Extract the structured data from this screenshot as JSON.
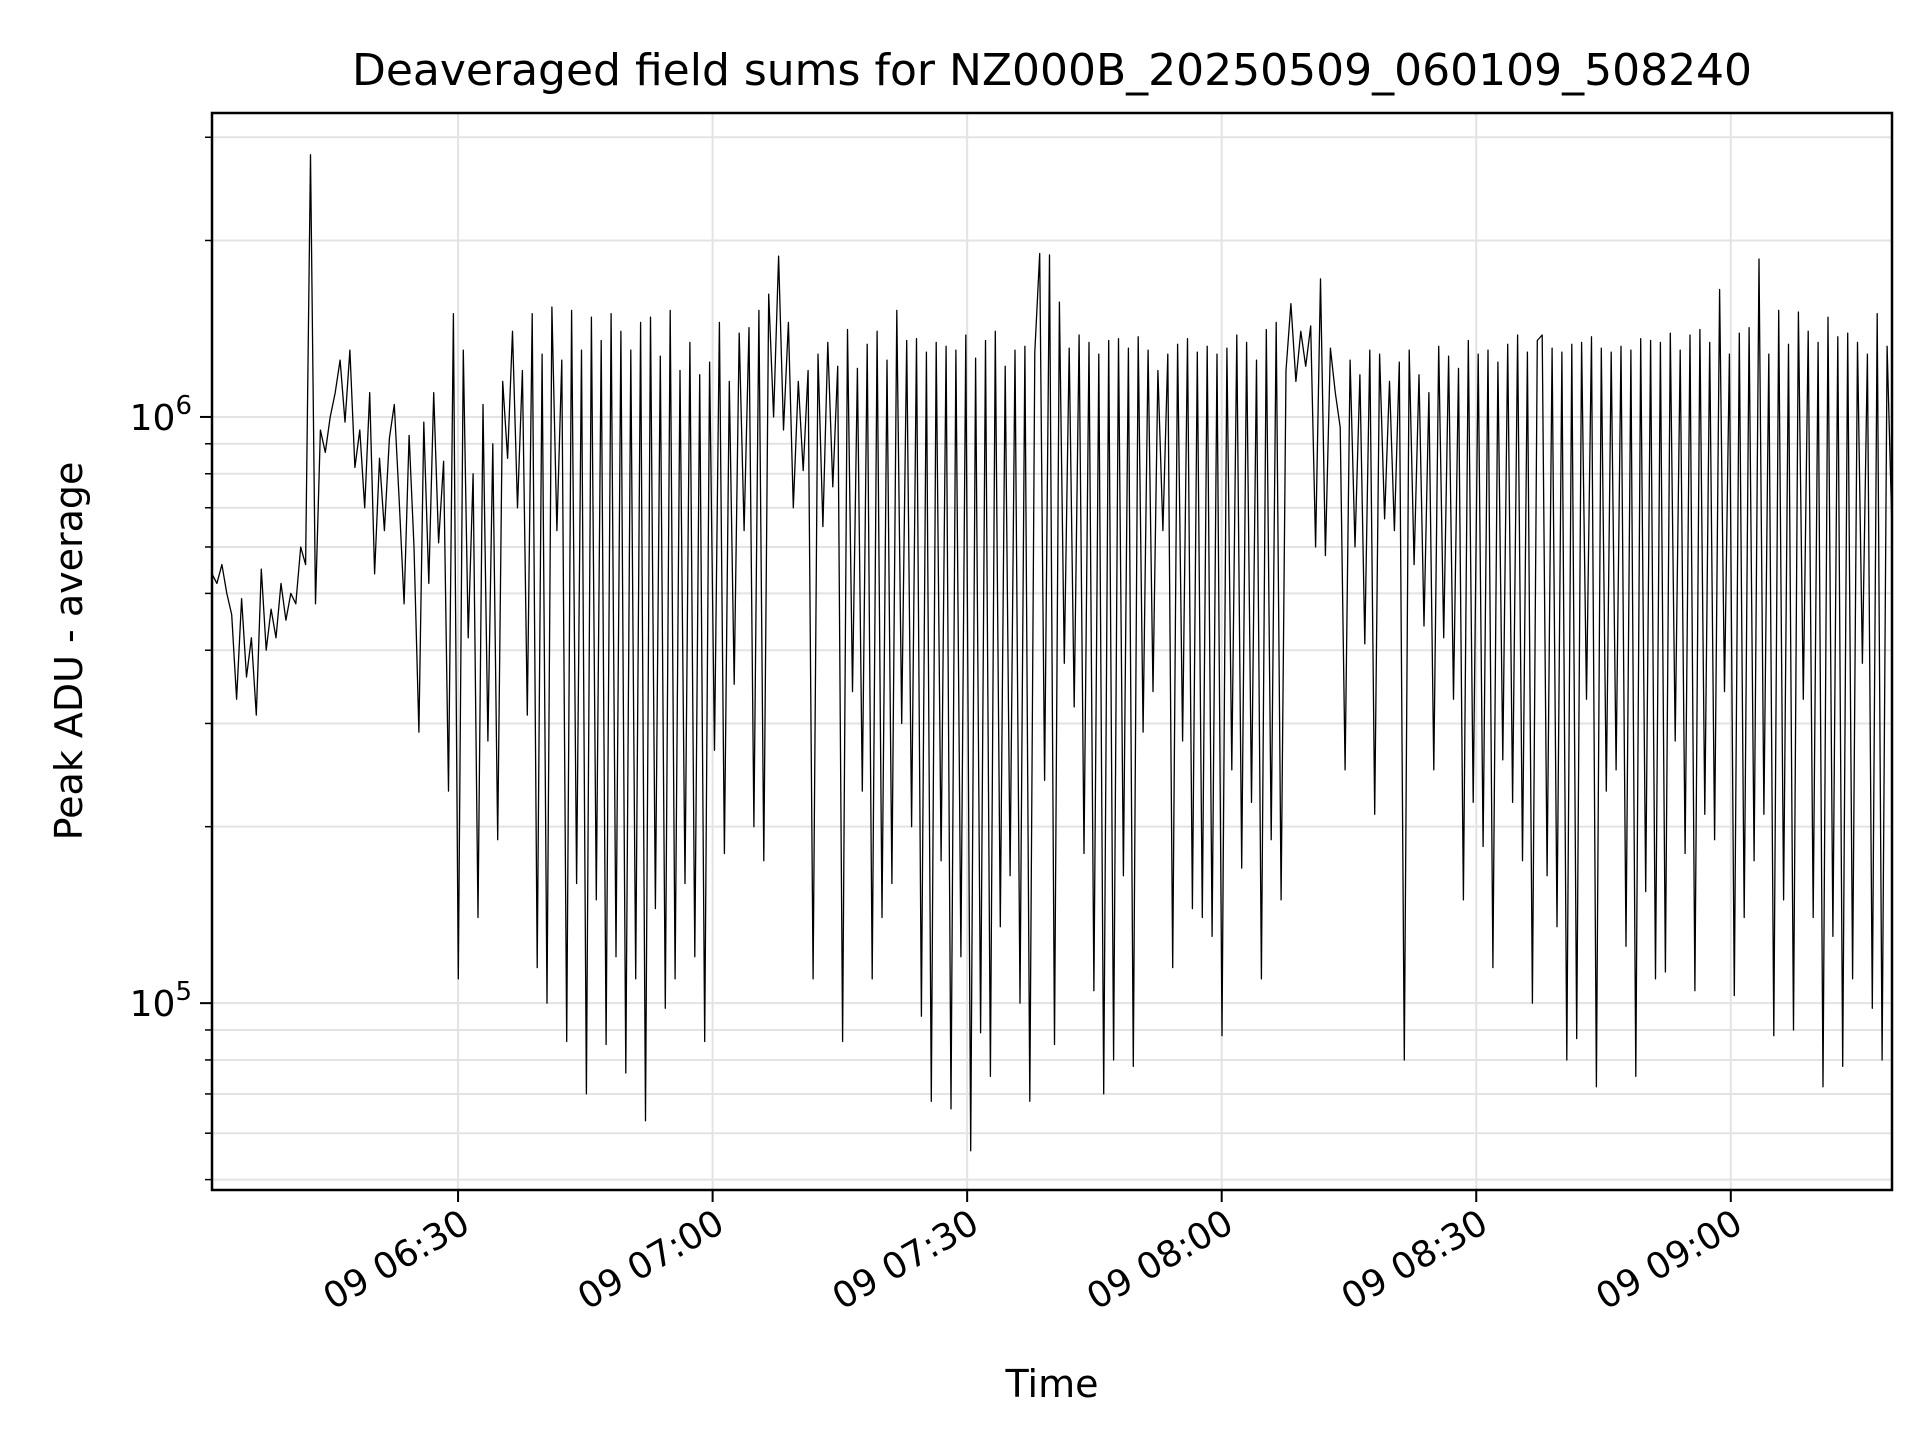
{
  "chart_data": {
    "type": "line",
    "title": "Deaveraged field sums for NZ000B_20250509_060109_508240",
    "xlabel": "Time",
    "ylabel": "Peak ADU - average",
    "yscale": "log",
    "xlim": [
      "2025-05-09 06:01",
      "2025-05-09 09:19"
    ],
    "ylim": [
      48000,
      3300000
    ],
    "grid": true,
    "line_color": "#000000",
    "x_ticks": [
      {
        "time": "06:30",
        "label": "09 06:30"
      },
      {
        "time": "07:00",
        "label": "09 07:00"
      },
      {
        "time": "07:30",
        "label": "09 07:30"
      },
      {
        "time": "08:00",
        "label": "09 08:00"
      },
      {
        "time": "08:30",
        "label": "09 08:30"
      },
      {
        "time": "09:00",
        "label": "09 09:00"
      }
    ],
    "y_ticks": [
      {
        "value": 100000,
        "base": "10",
        "exp": "5"
      },
      {
        "value": 1000000,
        "base": "10",
        "exp": "6"
      }
    ],
    "series": [
      {
        "x_start": "2025-05-09 06:01",
        "x_end": "2025-05-09 09:19",
        "values": [
          540000,
          520000,
          560000,
          500000,
          460000,
          330000,
          490000,
          360000,
          420000,
          310000,
          550000,
          400000,
          470000,
          420000,
          520000,
          450000,
          500000,
          480000,
          600000,
          560000,
          2800000,
          480000,
          950000,
          870000,
          1000000,
          1100000,
          1250000,
          980000,
          1300000,
          820000,
          950000,
          700000,
          1100000,
          540000,
          850000,
          640000,
          920000,
          1050000,
          720000,
          480000,
          930000,
          600000,
          290000,
          980000,
          520000,
          1100000,
          610000,
          840000,
          230000,
          1500000,
          110000,
          1300000,
          420000,
          800000,
          140000,
          1050000,
          280000,
          900000,
          190000,
          1150000,
          850000,
          1400000,
          700000,
          1200000,
          310000,
          1500000,
          115000,
          1280000,
          100000,
          1540000,
          640000,
          1250000,
          86000,
          1520000,
          160000,
          1300000,
          70000,
          1480000,
          150000,
          1350000,
          85000,
          1500000,
          120000,
          1400000,
          76000,
          1300000,
          110000,
          1450000,
          63000,
          1480000,
          145000,
          1270000,
          98000,
          1520000,
          110000,
          1200000,
          160000,
          1340000,
          120000,
          1180000,
          86000,
          1240000,
          270000,
          1450000,
          180000,
          1150000,
          350000,
          1390000,
          640000,
          1420000,
          200000,
          1520000,
          175000,
          1620000,
          1000000,
          1880000,
          950000,
          1450000,
          700000,
          1150000,
          810000,
          1200000,
          110000,
          1280000,
          650000,
          1340000,
          760000,
          1220000,
          86000,
          1410000,
          340000,
          1210000,
          230000,
          1330000,
          110000,
          1400000,
          140000,
          1250000,
          160000,
          1520000,
          300000,
          1350000,
          200000,
          1360000,
          95000,
          1290000,
          68000,
          1340000,
          175000,
          1320000,
          66000,
          1300000,
          120000,
          1380000,
          56000,
          1260000,
          89000,
          1350000,
          75000,
          1400000,
          135000,
          1220000,
          165000,
          1300000,
          100000,
          1320000,
          68000,
          1290000,
          1900000,
          240000,
          1890000,
          85000,
          1570000,
          380000,
          1310000,
          320000,
          1380000,
          180000,
          1340000,
          105000,
          1280000,
          70000,
          1350000,
          80000,
          1360000,
          165000,
          1310000,
          78000,
          1370000,
          290000,
          1300000,
          340000,
          1200000,
          640000,
          1280000,
          115000,
          1330000,
          280000,
          1360000,
          145000,
          1290000,
          140000,
          1320000,
          130000,
          1280000,
          88000,
          1310000,
          250000,
          1380000,
          170000,
          1340000,
          220000,
          1250000,
          110000,
          1410000,
          190000,
          1450000,
          150000,
          1200000,
          1560000,
          1150000,
          1400000,
          1220000,
          1430000,
          600000,
          1720000,
          580000,
          1310000,
          1100000,
          960000,
          250000,
          1250000,
          600000,
          1180000,
          410000,
          1300000,
          210000,
          1280000,
          670000,
          1150000,
          640000,
          1240000,
          80000,
          1300000,
          560000,
          1180000,
          440000,
          1100000,
          250000,
          1320000,
          420000,
          1270000,
          330000,
          1210000,
          150000,
          1350000,
          220000,
          1280000,
          185000,
          1300000,
          115000,
          1240000,
          260000,
          1330000,
          220000,
          1380000,
          175000,
          1290000,
          100000,
          1350000,
          1380000,
          165000,
          1310000,
          135000,
          1290000,
          80000,
          1330000,
          87000,
          1340000,
          330000,
          1370000,
          72000,
          1310000,
          230000,
          1290000,
          250000,
          1320000,
          125000,
          1300000,
          75000,
          1360000,
          155000,
          1350000,
          110000,
          1340000,
          113000,
          1390000,
          280000,
          1300000,
          180000,
          1380000,
          105000,
          1410000,
          210000,
          1340000,
          190000,
          1650000,
          340000,
          1280000,
          103000,
          1390000,
          140000,
          1420000,
          175000,
          1860000,
          210000,
          1280000,
          88000,
          1520000,
          150000,
          1330000,
          90000,
          1510000,
          330000,
          1400000,
          140000,
          1340000,
          72000,
          1480000,
          130000,
          1370000,
          78000,
          1390000,
          110000,
          1340000,
          380000,
          1280000,
          98000,
          1500000,
          80000,
          1320000,
          640000
        ]
      }
    ]
  }
}
